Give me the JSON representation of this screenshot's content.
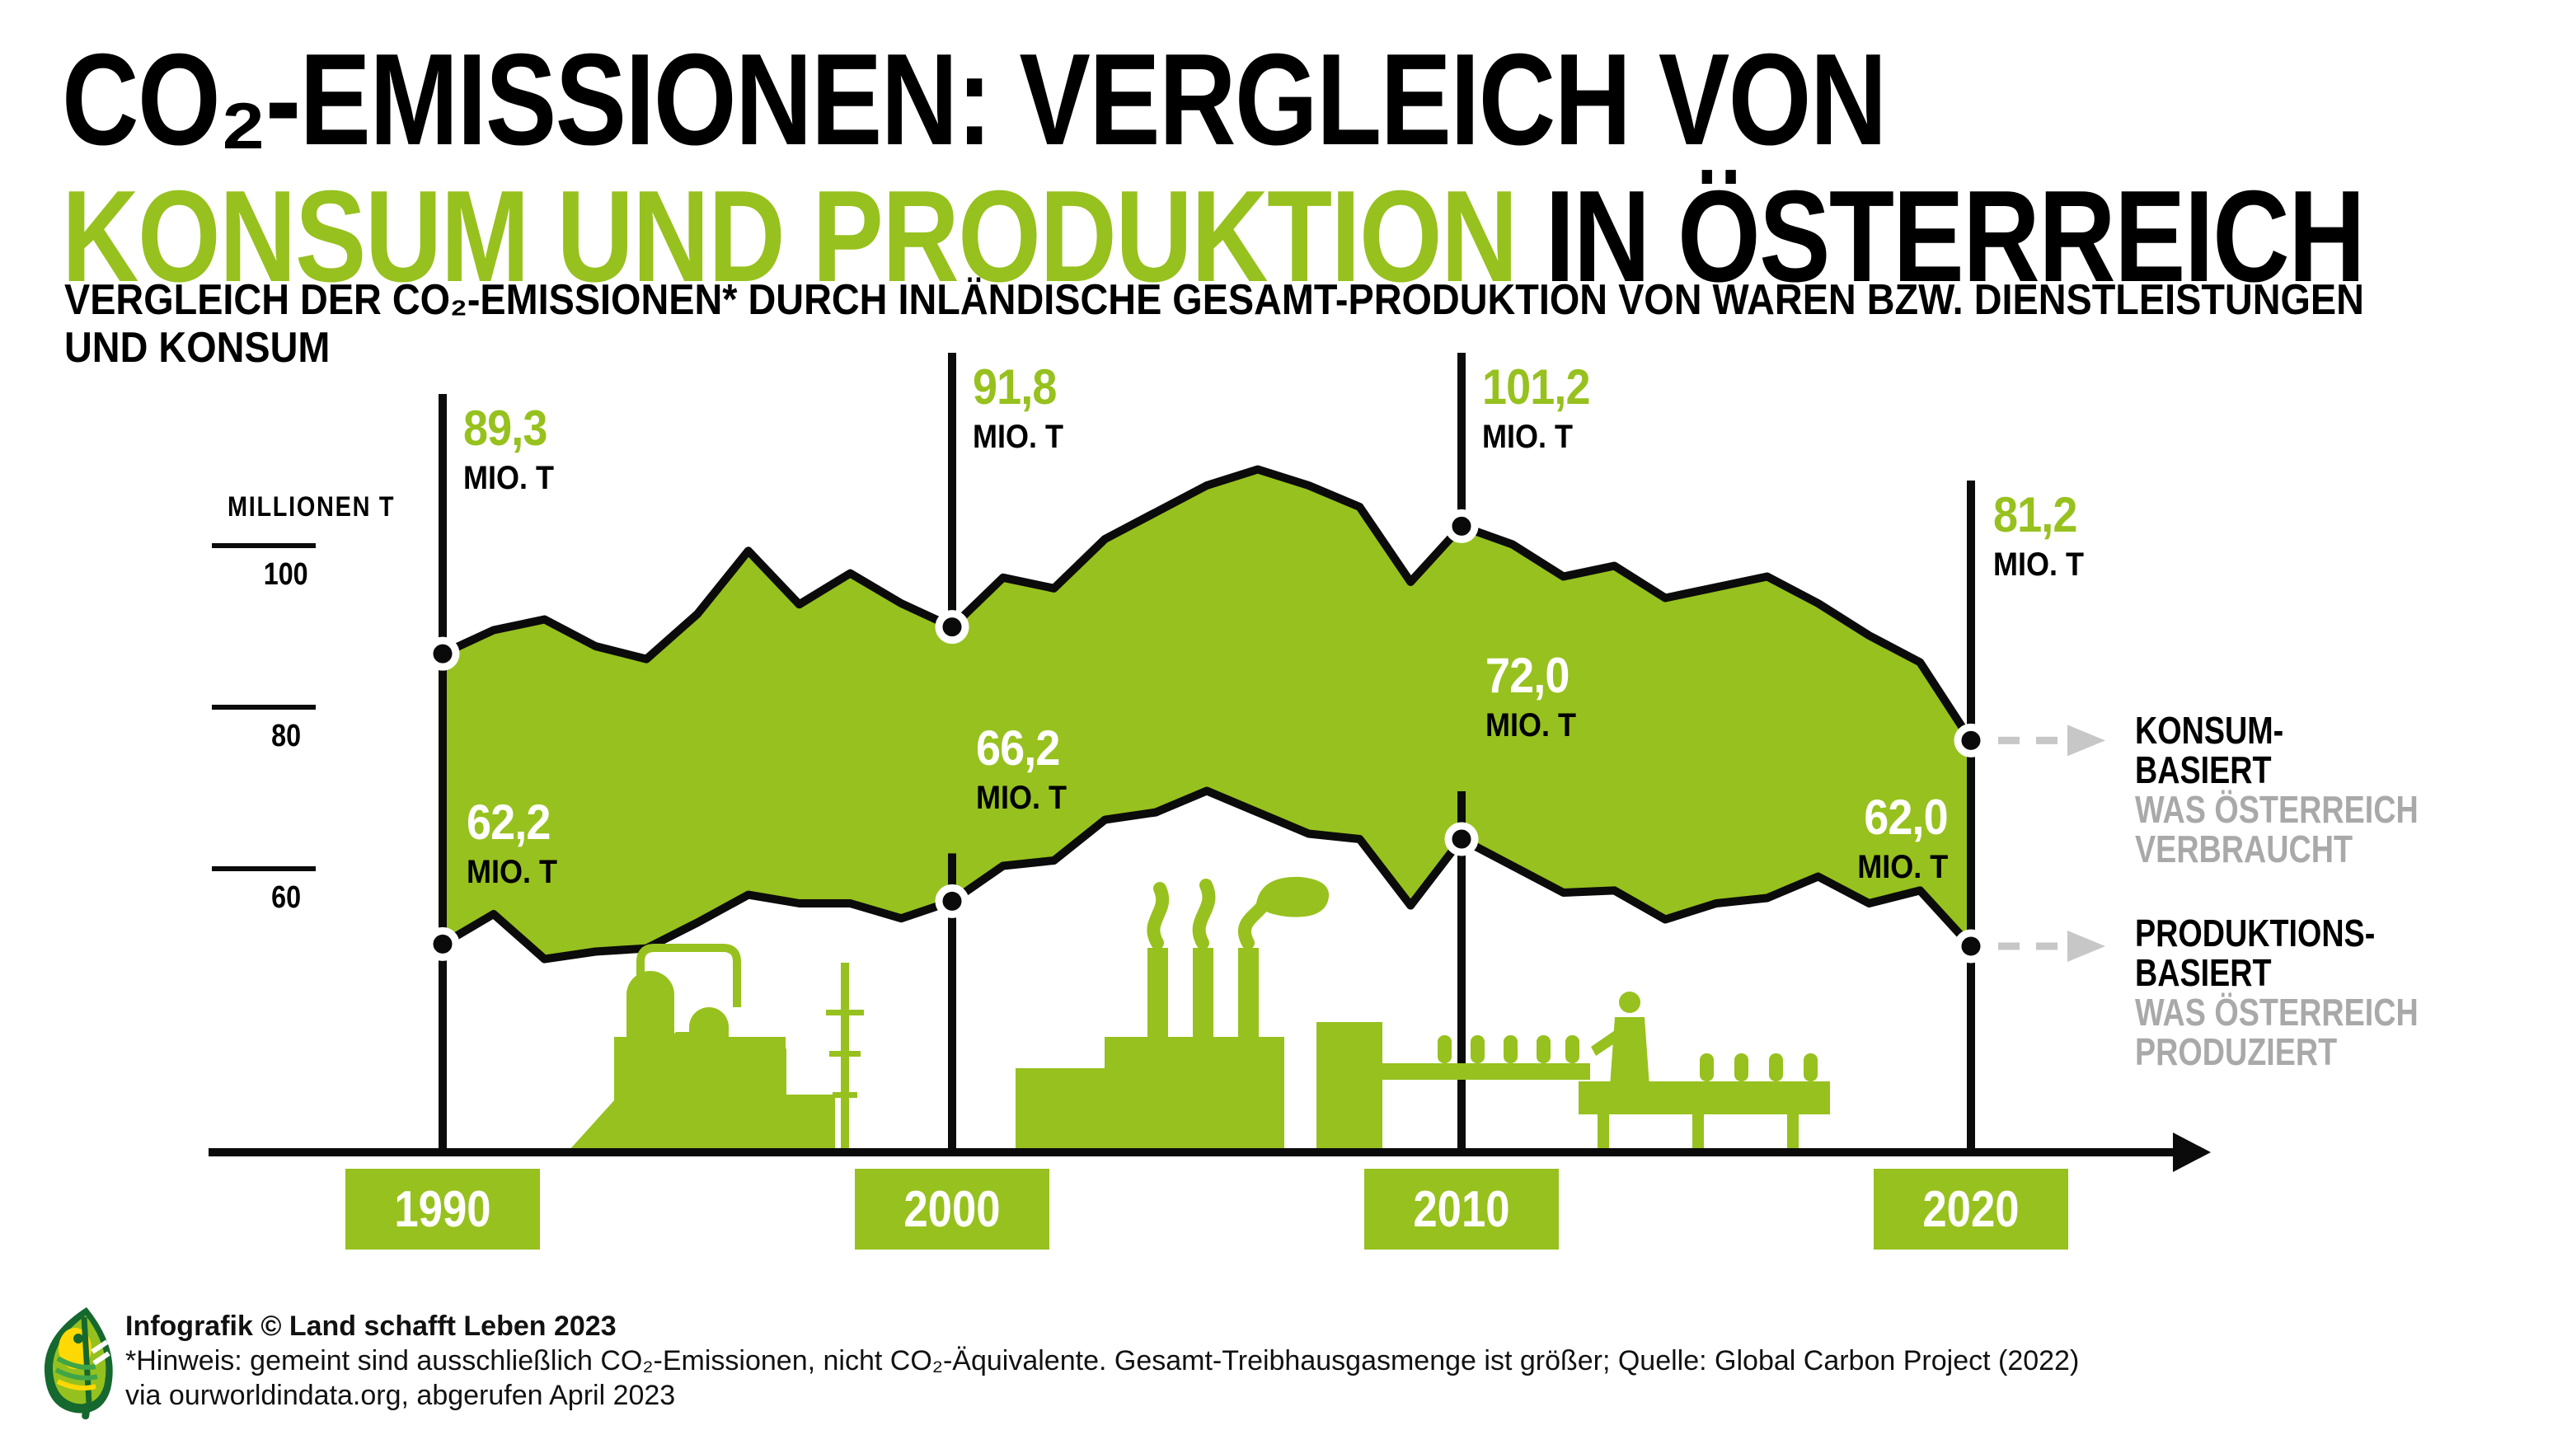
{
  "title": {
    "line1": "CO₂-EMISSIONEN: VERGLEICH VON",
    "line2_highlight": "KONSUM UND PRODUKTION",
    "line2_rest": " IN ÖSTERREICH"
  },
  "subtitle": {
    "line1": "VERGLEICH DER CO₂-EMISSIONEN* DURCH INLÄNDISCHE GESAMT-PRODUKTION VON WAREN BZW. DIENSTLEISTUNGEN",
    "line2": "UND KONSUM"
  },
  "colors": {
    "green": "#97C11E",
    "line_black": "#0b0b0b",
    "legend_gray": "#A9A9A9",
    "arrow_gray": "#C7C7C7"
  },
  "chart_data": {
    "type": "area",
    "title": "CO₂-Emissionen: Vergleich von Konsum und Produktion in Österreich",
    "unit": "MIO. T",
    "x": [
      1990,
      1991,
      1992,
      1993,
      1994,
      1995,
      1996,
      1997,
      1998,
      1999,
      2000,
      2001,
      2002,
      2003,
      2004,
      2005,
      2006,
      2007,
      2008,
      2009,
      2010,
      2011,
      2012,
      2013,
      2014,
      2015,
      2016,
      2017,
      2018,
      2019,
      2020
    ],
    "series": [
      {
        "name": "Konsum-basiert (was Österreich verbraucht)",
        "values": [
          89.3,
          91.5,
          92.5,
          90.0,
          88.8,
          93.0,
          98.9,
          93.9,
          96.8,
          94.0,
          91.8,
          96.4,
          95.4,
          100.0,
          102.5,
          105.0,
          106.5,
          105.0,
          103.0,
          96.0,
          101.2,
          99.5,
          96.5,
          97.5,
          94.5,
          95.5,
          96.5,
          94.0,
          91.0,
          88.5,
          81.2
        ]
      },
      {
        "name": "Produktions-basiert (was Österreich produziert)",
        "values": [
          62.2,
          65.0,
          60.8,
          61.5,
          61.8,
          64.2,
          66.8,
          66.0,
          66.0,
          64.6,
          66.2,
          69.5,
          70.0,
          73.8,
          74.5,
          76.5,
          74.5,
          72.5,
          72.0,
          65.8,
          72.0,
          69.5,
          67.0,
          67.2,
          64.5,
          66.0,
          66.5,
          68.5,
          66.0,
          67.2,
          62.0
        ]
      }
    ],
    "y_axis": {
      "label": "MILLIONEN T",
      "ticks": [
        100,
        80,
        60
      ]
    },
    "x_ticks": [
      "1990",
      "2000",
      "2010",
      "2020"
    ],
    "decades": [
      {
        "year": "1990",
        "konsum_value": "89,3",
        "konsum_unit": "MIO. T",
        "produktion_value": "62,2",
        "produktion_unit": "MIO. T"
      },
      {
        "year": "2000",
        "konsum_value": "91,8",
        "konsum_unit": "MIO. T",
        "produktion_value": "66,2",
        "produktion_unit": "MIO. T"
      },
      {
        "year": "2010",
        "konsum_value": "101,2",
        "konsum_unit": "MIO. T",
        "produktion_value": "72,0",
        "produktion_unit": "MIO. T"
      },
      {
        "year": "2020",
        "konsum_value": "81,2",
        "konsum_unit": "MIO. T",
        "produktion_value": "62,0",
        "produktion_unit": "MIO. T"
      }
    ],
    "legend": {
      "konsum": {
        "title_line1": "KONSUM-",
        "title_line2": "BASIERT",
        "desc_line1": "WAS ÖSTERREICH",
        "desc_line2": "VERBRAUCHT"
      },
      "produktion": {
        "title_line1": "PRODUKTIONS-",
        "title_line2": "BASIERT",
        "desc_line1": "WAS ÖSTERREICH",
        "desc_line2": "PRODUZIERT"
      }
    }
  },
  "footer": {
    "credit": "Infografik © Land schafft Leben 2023",
    "note_line1": "*Hinweis: gemeint sind ausschließlich CO₂-Emissionen, nicht CO₂-Äquivalente. Gesamt-Treibhausgasmenge ist größer; Quelle: Global Carbon Project (2022)",
    "note_line2": "via ourworldindata.org, abgerufen April 2023"
  }
}
